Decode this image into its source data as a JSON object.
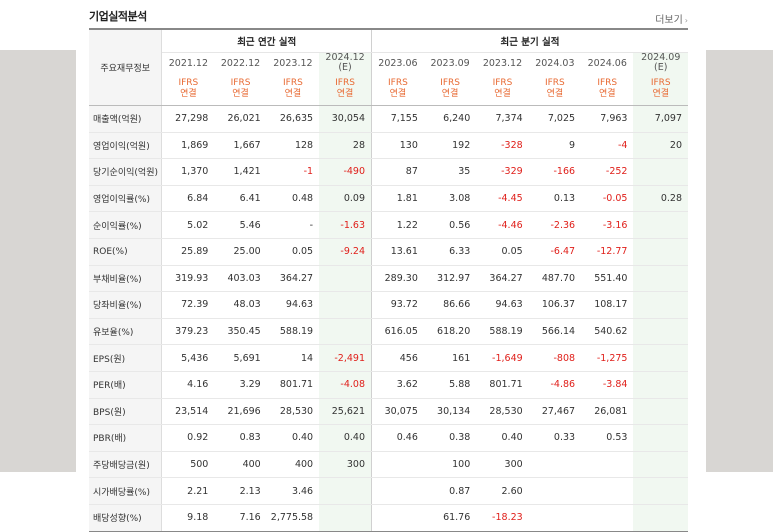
{
  "title": "기업실적분석",
  "more_label": "더보기",
  "header": {
    "metric_col": "주요재무정보",
    "annual_group": "최근 연간 실적",
    "quarter_group": "최근 분기 실적",
    "annual_dates": [
      "2021.12",
      "2022.12",
      "2023.12",
      "2024.12"
    ],
    "annual_est": "(E)",
    "quarter_dates": [
      "2023.06",
      "2023.09",
      "2023.12",
      "2024.03",
      "2024.06",
      "2024.09"
    ],
    "quarter_est": "(E)",
    "ifrs_line1": "IFRS",
    "ifrs_line2": "연결"
  },
  "rows": [
    {
      "label": "매출액(억원)",
      "values": [
        "27,298",
        "26,021",
        "26,635",
        "30,054",
        "7,155",
        "6,240",
        "7,374",
        "7,025",
        "7,963",
        "7,097"
      ]
    },
    {
      "label": "영업이익(억원)",
      "values": [
        "1,869",
        "1,667",
        "128",
        "28",
        "130",
        "192",
        "-328",
        "9",
        "-4",
        "20"
      ]
    },
    {
      "label": "당기순이익(억원)",
      "values": [
        "1,370",
        "1,421",
        "-1",
        "-490",
        "87",
        "35",
        "-329",
        "-166",
        "-252",
        ""
      ]
    },
    {
      "label": "영업이익률(%)",
      "values": [
        "6.84",
        "6.41",
        "0.48",
        "0.09",
        "1.81",
        "3.08",
        "-4.45",
        "0.13",
        "-0.05",
        "0.28"
      ]
    },
    {
      "label": "순이익률(%)",
      "values": [
        "5.02",
        "5.46",
        "-",
        "-1.63",
        "1.22",
        "0.56",
        "-4.46",
        "-2.36",
        "-3.16",
        ""
      ]
    },
    {
      "label": "ROE(%)",
      "values": [
        "25.89",
        "25.00",
        "0.05",
        "-9.24",
        "13.61",
        "6.33",
        "0.05",
        "-6.47",
        "-12.77",
        ""
      ]
    },
    {
      "label": "부채비율(%)",
      "values": [
        "319.93",
        "403.03",
        "364.27",
        "",
        "289.30",
        "312.97",
        "364.27",
        "487.70",
        "551.40",
        ""
      ]
    },
    {
      "label": "당좌비율(%)",
      "values": [
        "72.39",
        "48.03",
        "94.63",
        "",
        "93.72",
        "86.66",
        "94.63",
        "106.37",
        "108.17",
        ""
      ]
    },
    {
      "label": "유보율(%)",
      "values": [
        "379.23",
        "350.45",
        "588.19",
        "",
        "616.05",
        "618.20",
        "588.19",
        "566.14",
        "540.62",
        ""
      ]
    },
    {
      "label": "EPS(원)",
      "values": [
        "5,436",
        "5,691",
        "14",
        "-2,491",
        "456",
        "161",
        "-1,649",
        "-808",
        "-1,275",
        ""
      ]
    },
    {
      "label": "PER(배)",
      "values": [
        "4.16",
        "3.29",
        "801.71",
        "-4.08",
        "3.62",
        "5.88",
        "801.71",
        "-4.86",
        "-3.84",
        ""
      ]
    },
    {
      "label": "BPS(원)",
      "values": [
        "23,514",
        "21,696",
        "28,530",
        "25,621",
        "30,075",
        "30,134",
        "28,530",
        "27,467",
        "26,081",
        ""
      ]
    },
    {
      "label": "PBR(배)",
      "values": [
        "0.92",
        "0.83",
        "0.40",
        "0.40",
        "0.46",
        "0.38",
        "0.40",
        "0.33",
        "0.53",
        ""
      ]
    },
    {
      "label": "주당배당금(원)",
      "values": [
        "500",
        "400",
        "400",
        "300",
        "",
        "100",
        "300",
        "",
        "",
        ""
      ]
    },
    {
      "label": "시가배당률(%)",
      "values": [
        "2.21",
        "2.13",
        "3.46",
        "",
        "",
        "0.87",
        "2.60",
        "",
        "",
        ""
      ]
    },
    {
      "label": "배당성향(%)",
      "values": [
        "9.18",
        "7.16",
        "2,775.58",
        "",
        "",
        "61.76",
        "-18.23",
        "",
        "",
        ""
      ]
    }
  ],
  "colors": {
    "negative": "#e0201b",
    "ifrs": "#e86a33",
    "estimate_shade": "#f1f8f1"
  }
}
